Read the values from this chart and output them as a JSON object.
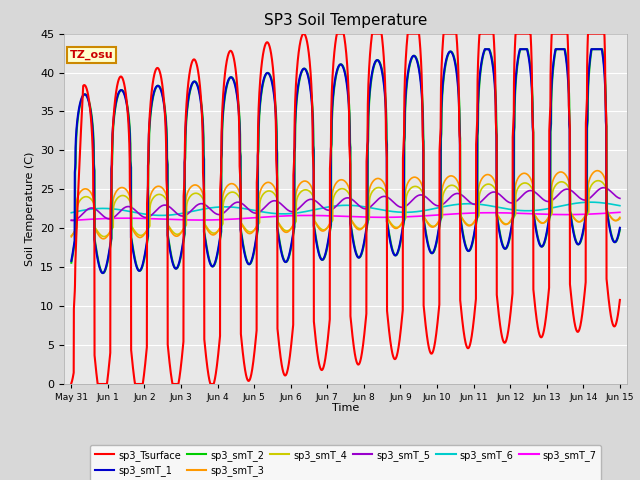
{
  "title": "SP3 Soil Temperature",
  "xlabel": "Time",
  "ylabel": "Soil Temperature (C)",
  "tz_label": "TZ_osu",
  "ylim": [
    0,
    45
  ],
  "colors": {
    "sp3_Tsurface": "#ff0000",
    "sp3_smT_1": "#0000cc",
    "sp3_smT_2": "#00cc00",
    "sp3_smT_3": "#ff9900",
    "sp3_smT_4": "#cccc00",
    "sp3_smT_5": "#9900cc",
    "sp3_smT_6": "#00cccc",
    "sp3_smT_7": "#ff00ff"
  },
  "x_tick_labels": [
    "May 31",
    "Jun 1",
    "Jun 2",
    "Jun 3",
    "Jun 4",
    "Jun 5",
    "Jun 6",
    "Jun 7",
    "Jun 8",
    "Jun 9",
    "Jun 10",
    "Jun 11",
    "Jun 12",
    "Jun 13",
    "Jun 14",
    "Jun 15"
  ],
  "x_tick_positions": [
    0,
    1,
    2,
    3,
    4,
    5,
    6,
    7,
    8,
    9,
    10,
    11,
    12,
    13,
    14,
    15
  ],
  "fig_bg": "#d8d8d8",
  "plot_bg": "#e8e8e8",
  "grid_color": "#ffffff"
}
